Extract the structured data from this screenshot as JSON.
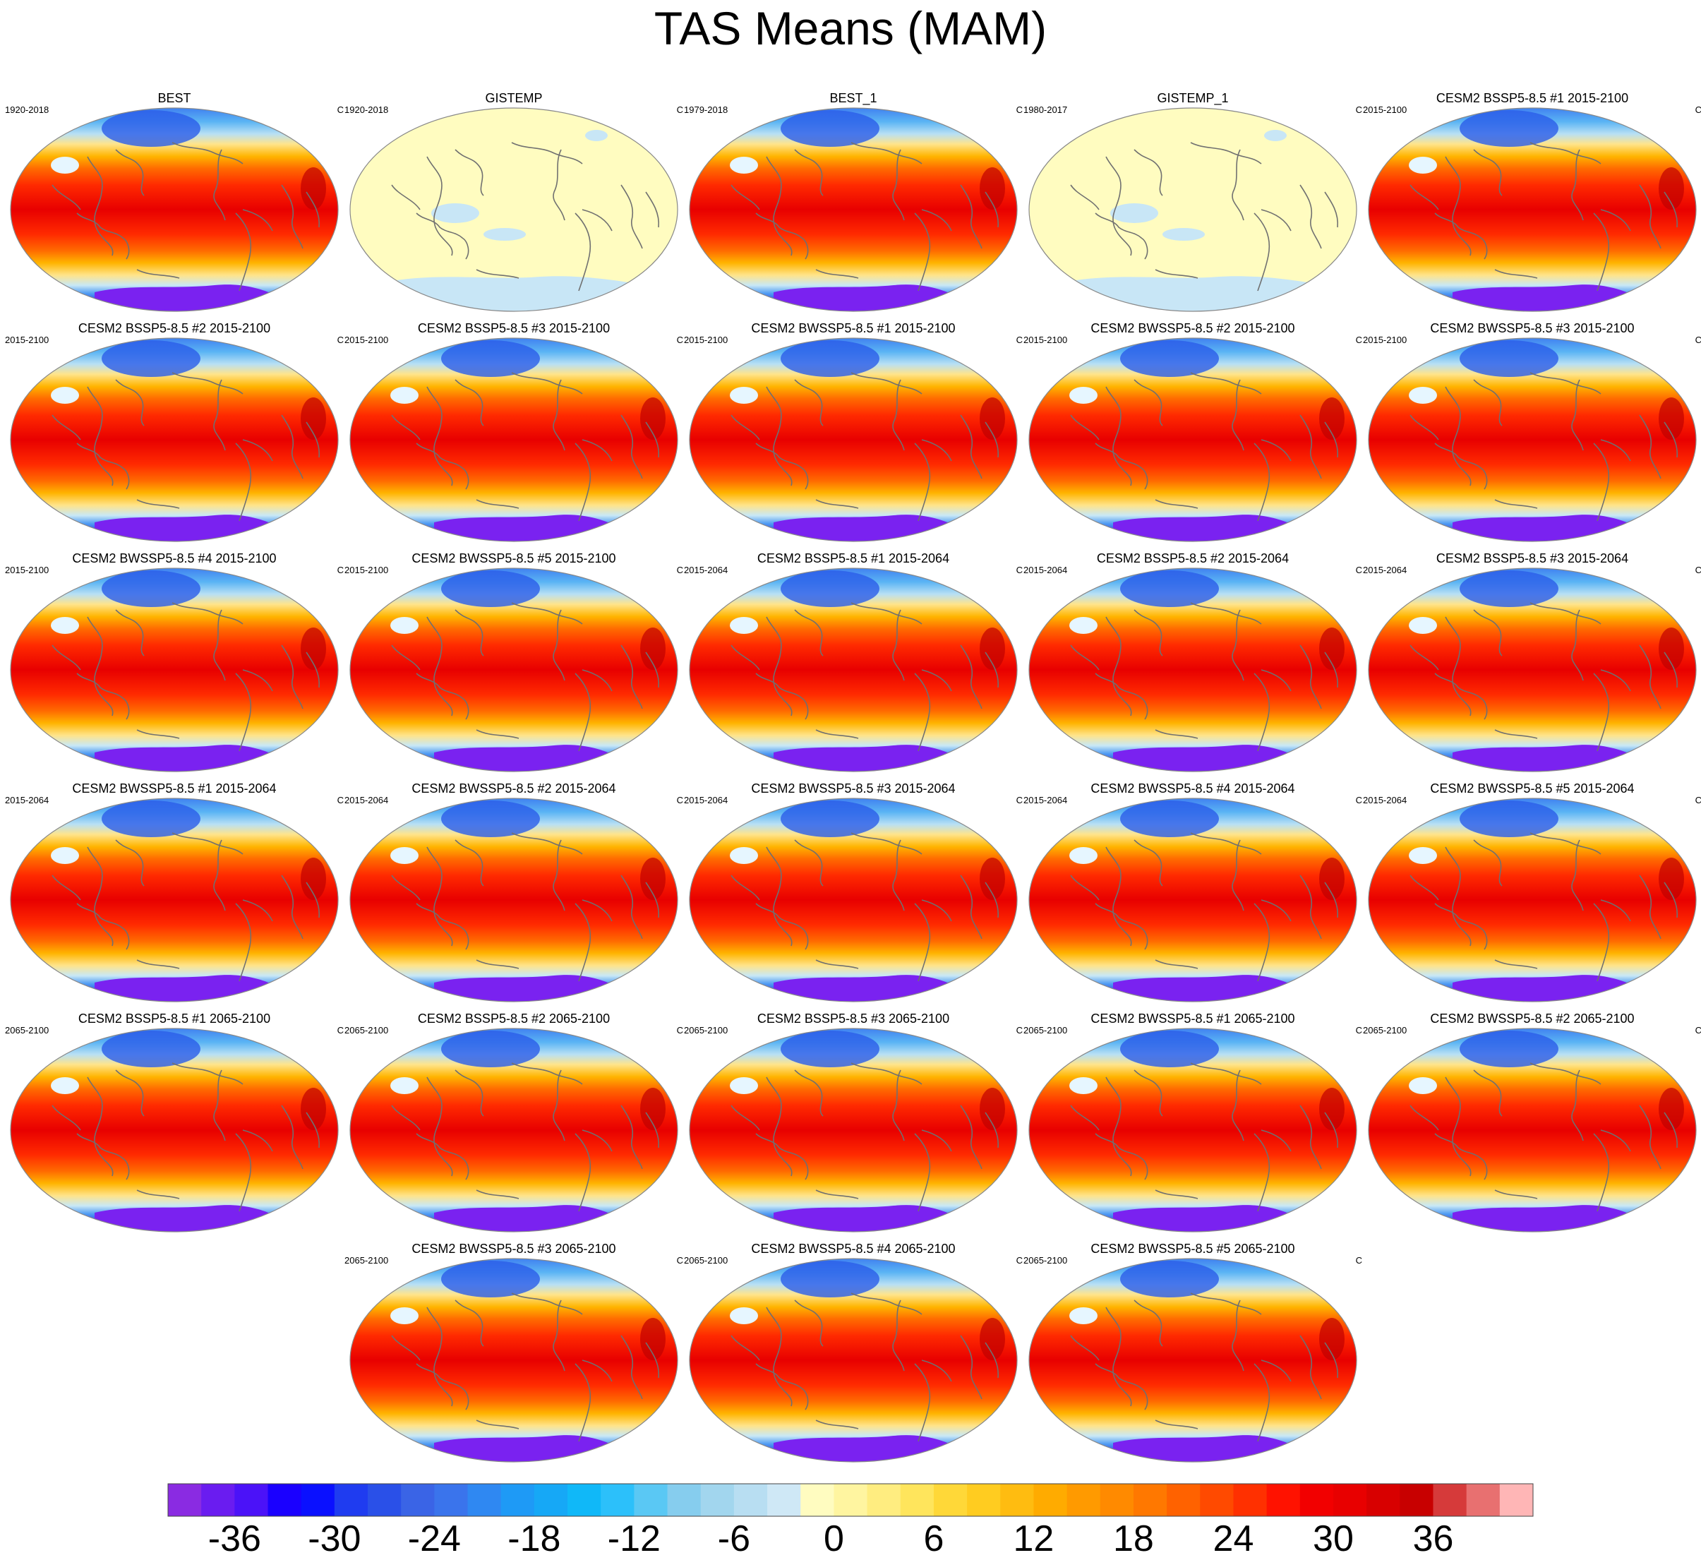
{
  "title": "TAS Means (MAM)",
  "units": "C",
  "panels": [
    {
      "title": "BEST",
      "period": "1920-2018",
      "style": "warm"
    },
    {
      "title": "GISTEMP",
      "period": "1920-2018",
      "style": "anomaly"
    },
    {
      "title": "BEST_1",
      "period": "1979-2018",
      "style": "warm"
    },
    {
      "title": "GISTEMP_1",
      "period": "1980-2017",
      "style": "anomaly"
    },
    {
      "title": "CESM2 BSSP5-8.5 #1 2015-2100",
      "period": "2015-2100",
      "style": "warm"
    },
    {
      "title": "CESM2 BSSP5-8.5 #2 2015-2100",
      "period": "2015-2100",
      "style": "warm"
    },
    {
      "title": "CESM2 BSSP5-8.5 #3 2015-2100",
      "period": "2015-2100",
      "style": "warm"
    },
    {
      "title": "CESM2 BWSSP5-8.5 #1 2015-2100",
      "period": "2015-2100",
      "style": "warm"
    },
    {
      "title": "CESM2 BWSSP5-8.5 #2 2015-2100",
      "period": "2015-2100",
      "style": "warm"
    },
    {
      "title": "CESM2 BWSSP5-8.5 #3 2015-2100",
      "period": "2015-2100",
      "style": "warm"
    },
    {
      "title": "CESM2 BWSSP5-8.5 #4 2015-2100",
      "period": "2015-2100",
      "style": "warm"
    },
    {
      "title": "CESM2 BWSSP5-8.5 #5 2015-2100",
      "period": "2015-2100",
      "style": "warm"
    },
    {
      "title": "CESM2 BSSP5-8.5 #1 2015-2064",
      "period": "2015-2064",
      "style": "warm"
    },
    {
      "title": "CESM2 BSSP5-8.5 #2 2015-2064",
      "period": "2015-2064",
      "style": "warm"
    },
    {
      "title": "CESM2 BSSP5-8.5 #3 2015-2064",
      "period": "2015-2064",
      "style": "warm"
    },
    {
      "title": "CESM2 BWSSP5-8.5 #1 2015-2064",
      "period": "2015-2064",
      "style": "warm"
    },
    {
      "title": "CESM2 BWSSP5-8.5 #2 2015-2064",
      "period": "2015-2064",
      "style": "warm"
    },
    {
      "title": "CESM2 BWSSP5-8.5 #3 2015-2064",
      "period": "2015-2064",
      "style": "warm"
    },
    {
      "title": "CESM2 BWSSP5-8.5 #4 2015-2064",
      "period": "2015-2064",
      "style": "warm"
    },
    {
      "title": "CESM2 BWSSP5-8.5 #5 2015-2064",
      "period": "2015-2064",
      "style": "warm"
    },
    {
      "title": "CESM2 BSSP5-8.5 #1 2065-2100",
      "period": "2065-2100",
      "style": "warm"
    },
    {
      "title": "CESM2 BSSP5-8.5 #2 2065-2100",
      "period": "2065-2100",
      "style": "warm"
    },
    {
      "title": "CESM2 BSSP5-8.5 #3 2065-2100",
      "period": "2065-2100",
      "style": "warm"
    },
    {
      "title": "CESM2 BWSSP5-8.5 #1 2065-2100",
      "period": "2065-2100",
      "style": "warm"
    },
    {
      "title": "CESM2 BWSSP5-8.5 #2 2065-2100",
      "period": "2065-2100",
      "style": "warm"
    },
    {
      "title": "CESM2 BWSSP5-8.5 #3 2065-2100",
      "period": "2065-2100",
      "style": "warm"
    },
    {
      "title": "CESM2 BWSSP5-8.5 #4 2065-2100",
      "period": "2065-2100",
      "style": "warm"
    },
    {
      "title": "CESM2 BWSSP5-8.5 #5 2065-2100",
      "period": "2065-2100",
      "style": "warm"
    }
  ],
  "colorbar": {
    "colors": [
      "#8a2be2",
      "#6a1cf0",
      "#4b12f8",
      "#1a00ff",
      "#0a10ff",
      "#1f3cf0",
      "#2a50e8",
      "#3a64e6",
      "#3a74ec",
      "#2f88f2",
      "#1e9af6",
      "#16a8f6",
      "#10b8f8",
      "#2cc0fa",
      "#5ac8f4",
      "#86cdee",
      "#a2d6ee",
      "#b8def2",
      "#cfe8f6",
      "#fffcc0",
      "#fff5a0",
      "#ffed80",
      "#ffe55c",
      "#ffd838",
      "#ffcc20",
      "#ffbc10",
      "#ffab00",
      "#ff9a00",
      "#ff8a00",
      "#ff7800",
      "#ff6200",
      "#ff4a00",
      "#ff3000",
      "#ff1200",
      "#f20000",
      "#e80000",
      "#d80000",
      "#c80000",
      "#d63a3a",
      "#e87070",
      "#ffb6b6"
    ],
    "tick_labels": [
      "-36",
      "-30",
      "-24",
      "-18",
      "-12",
      "-6",
      "0",
      "6",
      "12",
      "18",
      "24",
      "30",
      "36"
    ]
  }
}
